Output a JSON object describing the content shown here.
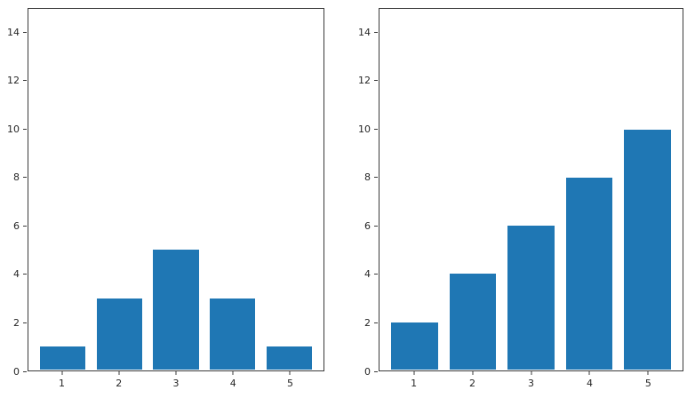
{
  "figure": {
    "background_color": "#ffffff",
    "bar_color": "#1f77b4",
    "spine_color": "#3a3a3a",
    "text_color": "#262626"
  },
  "chart_data": [
    {
      "type": "bar",
      "title": "",
      "xlabel": "",
      "ylabel": "",
      "x": [
        1,
        2,
        3,
        4,
        5
      ],
      "categories": [
        "1",
        "2",
        "3",
        "4",
        "5"
      ],
      "values": [
        1,
        3,
        5,
        3,
        1
      ],
      "ylim": [
        0,
        15
      ],
      "xlim": [
        0.4,
        5.6
      ],
      "bar_width": 0.8,
      "yticks": [
        0,
        2,
        4,
        6,
        8,
        10,
        12,
        14
      ],
      "grid": false,
      "legend": null
    },
    {
      "type": "bar",
      "title": "",
      "xlabel": "",
      "ylabel": "",
      "x": [
        1,
        2,
        3,
        4,
        5
      ],
      "categories": [
        "1",
        "2",
        "3",
        "4",
        "5"
      ],
      "values": [
        2,
        4,
        6,
        8,
        10
      ],
      "ylim": [
        0,
        15
      ],
      "xlim": [
        0.4,
        5.6
      ],
      "bar_width": 0.8,
      "yticks": [
        0,
        2,
        4,
        6,
        8,
        10,
        12,
        14
      ],
      "grid": false,
      "legend": null
    }
  ]
}
